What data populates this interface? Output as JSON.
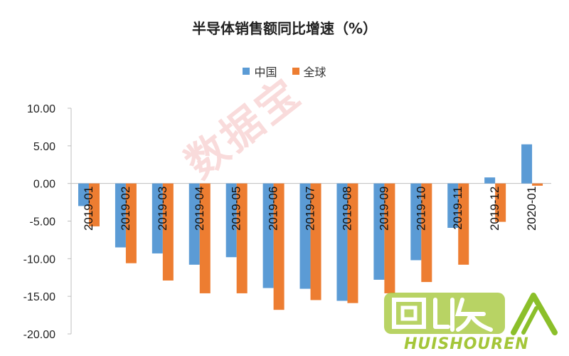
{
  "chart_data": {
    "type": "bar",
    "title": "半导体销售额同比增速（%）",
    "categories": [
      "2019-01",
      "2019-02",
      "2019-03",
      "2019-04",
      "2019-05",
      "2019-06",
      "2019-07",
      "2019-08",
      "2019-09",
      "2019-10",
      "2019-11",
      "2019-12",
      "2020-01"
    ],
    "series": [
      {
        "name": "中国",
        "color": "#5b9bd5",
        "values": [
          -3.0,
          -8.5,
          -9.3,
          -10.8,
          -9.8,
          -13.9,
          -14.0,
          -15.6,
          -12.8,
          -10.2,
          -5.9,
          0.8,
          5.2
        ]
      },
      {
        "name": "全球",
        "color": "#ed7d31",
        "values": [
          -5.7,
          -10.6,
          -12.9,
          -14.6,
          -14.6,
          -16.8,
          -15.5,
          -15.9,
          -14.6,
          -13.1,
          -10.8,
          -5.1,
          -0.3
        ]
      }
    ],
    "ylim": [
      -20,
      10
    ],
    "yticks": [
      "10.00",
      "5.00",
      "0.00",
      "-5.00",
      "-10.00",
      "-15.00",
      "-20.00"
    ],
    "ytick_values": [
      10,
      5,
      0,
      -5,
      -10,
      -15,
      -20
    ],
    "xlabel": "",
    "ylabel": "",
    "legend_position": "top",
    "grid": false
  },
  "watermark": "数据宝",
  "logo": {
    "text": "HUISHOUREN",
    "icon": "recycle-logo-icon"
  }
}
